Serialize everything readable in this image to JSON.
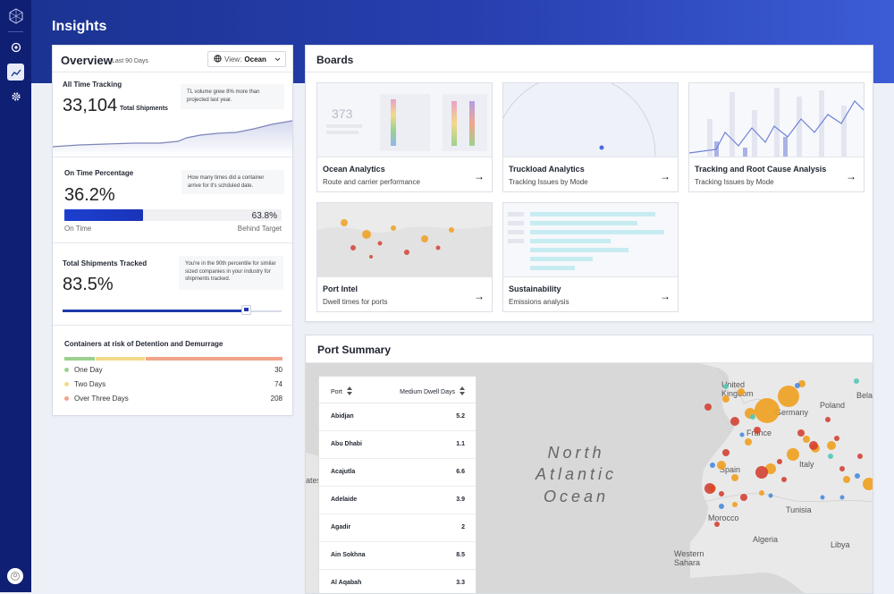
{
  "page": {
    "title": "Insights"
  },
  "overview": {
    "title": "Overview",
    "subtitle": "Last 90 Days",
    "view_label": "View:",
    "view_value": "Ocean",
    "all_time": {
      "heading": "All Time Tracking",
      "value": "33,104",
      "unit": "Total Shipments",
      "note": "TL volume grew 8% more than projected last year."
    },
    "on_time": {
      "heading": "On Time Percentage",
      "value": "36.2%",
      "other": "63.8%",
      "fraction": 0.362,
      "left_label": "On Time",
      "right_label": "Behind Target",
      "note": "How many times did a container arrive for it's schduled date."
    },
    "tracked": {
      "heading": "Total Shipments Tracked",
      "value": "83.5%",
      "fraction": 0.835,
      "note": "You're in the 90th percentile for similar sized companies in your industry for shipments tracked."
    },
    "risk": {
      "heading": "Containers at risk of Detention and Demurrage",
      "items": [
        {
          "label": "One Day",
          "value": "30",
          "color": "#9bd18f"
        },
        {
          "label": "Two Days",
          "value": "74",
          "color": "#f3d98a"
        },
        {
          "label": "Over Three Days",
          "value": "208",
          "color": "#f2a48b"
        }
      ]
    }
  },
  "boards": {
    "title": "Boards",
    "tiles": [
      {
        "name": "Ocean Analytics",
        "sub": "Route and carrier performance",
        "thumb_number": "373"
      },
      {
        "name": "Truckload Analytics",
        "sub": "Tracking Issues by Mode"
      },
      {
        "name": "Tracking and Root Cause Analysis",
        "sub": "Tracking Issues by Mode"
      },
      {
        "name": "Port Intel",
        "sub": "Dwell times for ports"
      },
      {
        "name": "Sustainability",
        "sub": "Emissions analysis"
      }
    ],
    "arrow": "→"
  },
  "port_summary": {
    "title": "Port Summary",
    "col_port": "Port",
    "col_dwell": "Medium Dwell Days",
    "rows": [
      {
        "port": "Abidjan",
        "days": "5.2"
      },
      {
        "port": "Abu Dhabi",
        "days": "1.1"
      },
      {
        "port": "Acajutla",
        "days": "6.6"
      },
      {
        "port": "Adelaide",
        "days": "3.9"
      },
      {
        "port": "Agadir",
        "days": "2"
      },
      {
        "port": "Ain Sokhna",
        "days": "8.5"
      },
      {
        "port": "Al Aqabah",
        "days": "3.3"
      }
    ],
    "map": {
      "ocean_lines": [
        "North",
        "Atlantic",
        "Ocean"
      ],
      "labels": [
        "United Kingdom",
        "Germany",
        "Bela",
        "Poland",
        "France",
        "Italy",
        "Spain",
        "Morocco",
        "Tunisia",
        "Algeria",
        "Libya",
        "Western Sahara",
        "ates"
      ]
    }
  },
  "colors": {
    "accent": "#1e3aa8",
    "rail": "#0f1f73",
    "bar_fill": "#1c3fd0",
    "dot_orange": "#f0a020",
    "dot_red": "#d23a2a"
  }
}
